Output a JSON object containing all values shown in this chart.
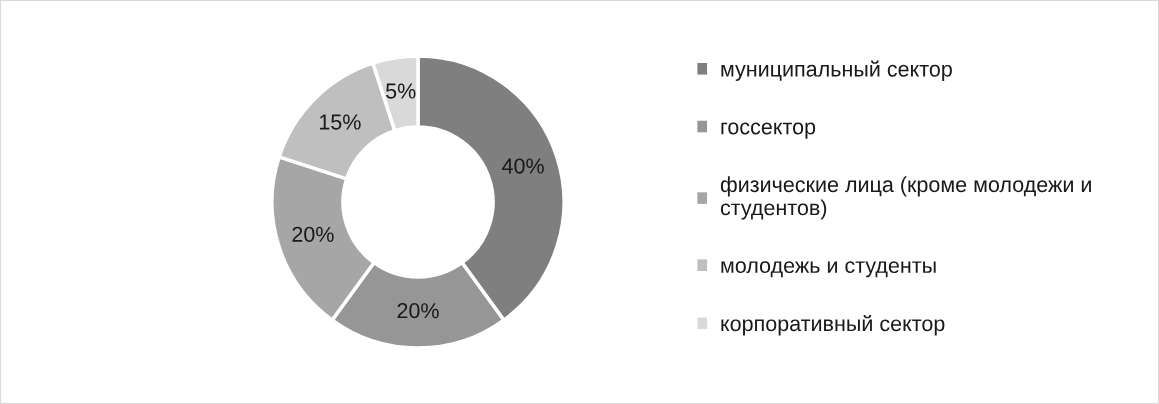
{
  "chart_data": {
    "type": "donut",
    "categories": [
      "муниципальный сектор",
      "госсектор",
      "физические лица (кроме молодежи и студентов)",
      "молодежь и студенты",
      "корпоративный сектор"
    ],
    "values": [
      40,
      20,
      20,
      15,
      5
    ],
    "colors": [
      "#7f7f7f",
      "#969696",
      "#a6a6a6",
      "#bfbfbf",
      "#d9d9d9"
    ],
    "value_labels": [
      "40%",
      "20%",
      "20%",
      "15%",
      "5%"
    ],
    "legend": "right"
  }
}
